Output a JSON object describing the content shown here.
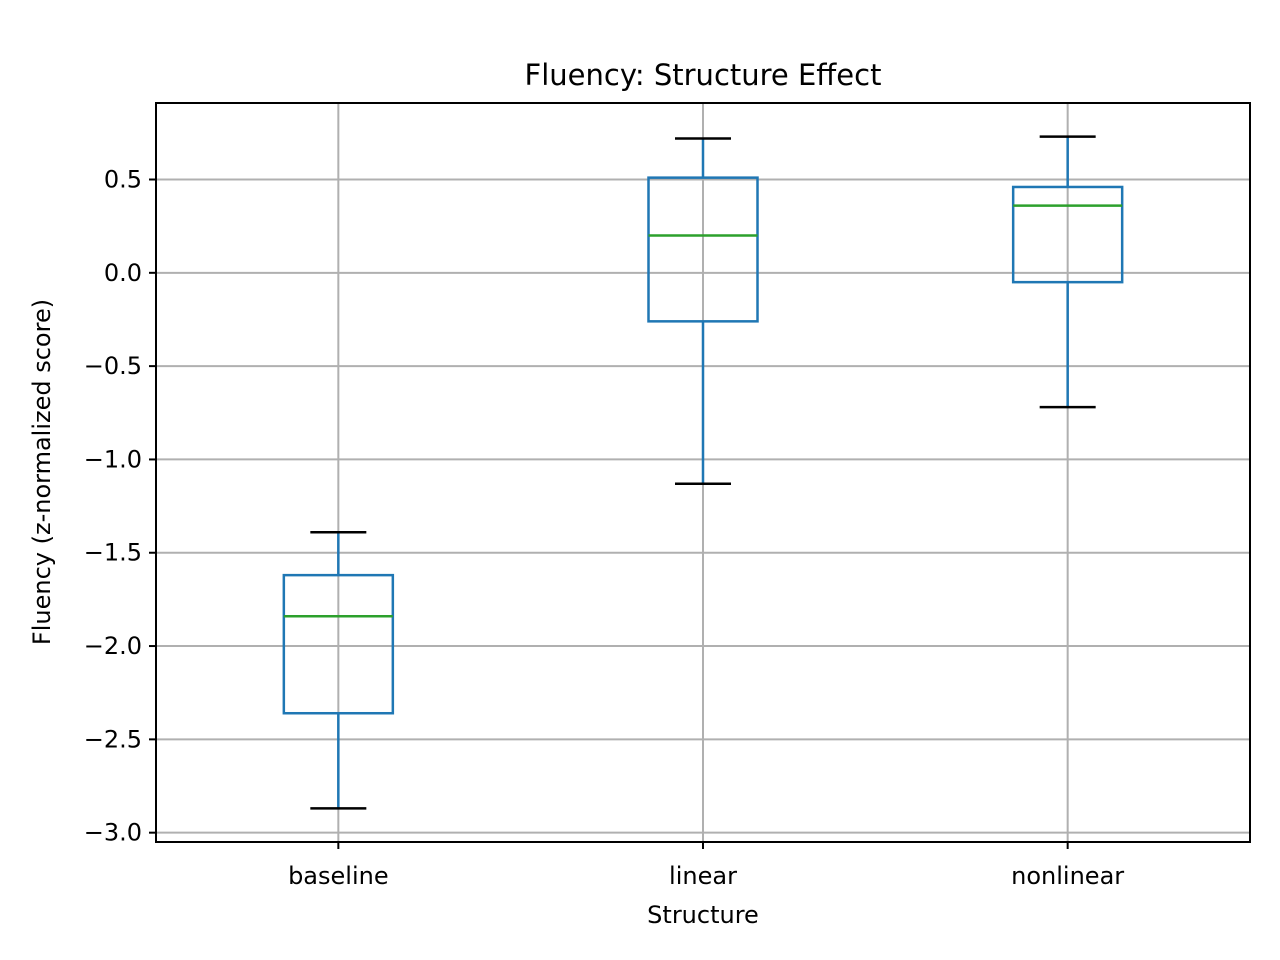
{
  "chart_data": {
    "type": "box",
    "title": "Fluency: Structure Effect",
    "xlabel": "Structure",
    "ylabel": "Fluency (z-normalized score)",
    "categories": [
      "baseline",
      "linear",
      "nonlinear"
    ],
    "ylim": [
      -3.05,
      0.91
    ],
    "yticks": [
      0.5,
      0.0,
      -0.5,
      -1.0,
      -1.5,
      -2.0,
      -2.5,
      -3.0
    ],
    "ytick_labels": [
      "0.5",
      "0.0",
      "−0.5",
      "−1.0",
      "−1.5",
      "−2.0",
      "−2.5",
      "−3.0"
    ],
    "grid": true,
    "boxes": [
      {
        "category": "baseline",
        "whisker_low": -2.87,
        "q1": -2.36,
        "median": -1.84,
        "q3": -1.62,
        "whisker_high": -1.39
      },
      {
        "category": "linear",
        "whisker_low": -1.13,
        "q1": -0.26,
        "median": 0.2,
        "q3": 0.51,
        "whisker_high": 0.72
      },
      {
        "category": "nonlinear",
        "whisker_low": -0.72,
        "q1": -0.05,
        "median": 0.36,
        "q3": 0.46,
        "whisker_high": 0.73
      }
    ],
    "colors": {
      "box": "#1f77b4",
      "median": "#2ca02c",
      "cap": "#000000",
      "grid": "#b0b0b0"
    }
  }
}
